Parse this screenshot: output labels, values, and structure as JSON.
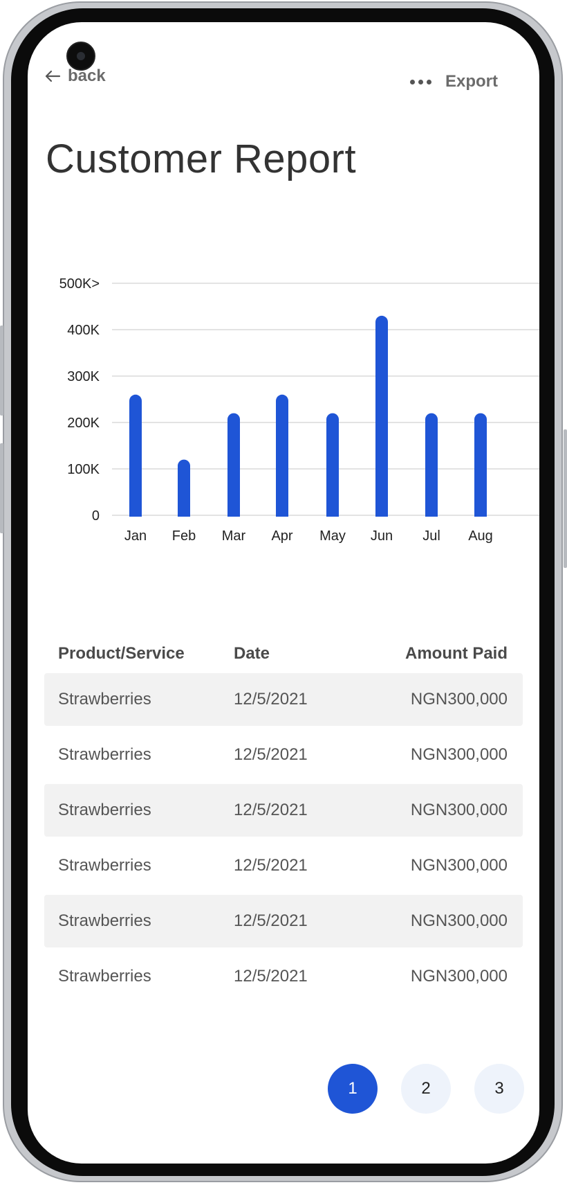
{
  "header": {
    "back_label": "back",
    "export_label": "Export"
  },
  "page_title": "Customer Report",
  "colors": {
    "accent": "#1f55d6",
    "grid": "#e3e3e3",
    "row_shade": "#f2f2f2"
  },
  "chart_data": {
    "type": "bar",
    "categories": [
      "Jan",
      "Feb",
      "Mar",
      "Apr",
      "May",
      "Jun",
      "Jul",
      "Aug"
    ],
    "values": [
      260000,
      120000,
      220000,
      260000,
      220000,
      430000,
      220000,
      220000
    ],
    "y_ticks": [
      "0",
      "100K",
      "200K",
      "300K",
      "400K",
      "500K>"
    ],
    "ylim": [
      0,
      500000
    ],
    "grid": true
  },
  "table": {
    "headers": [
      "Product/Service",
      "Date",
      "Amount Paid"
    ],
    "rows": [
      [
        "Strawberries",
        "12/5/2021",
        "NGN300,000"
      ],
      [
        "Strawberries",
        "12/5/2021",
        "NGN300,000"
      ],
      [
        "Strawberries",
        "12/5/2021",
        "NGN300,000"
      ],
      [
        "Strawberries",
        "12/5/2021",
        "NGN300,000"
      ],
      [
        "Strawberries",
        "12/5/2021",
        "NGN300,000"
      ],
      [
        "Strawberries",
        "12/5/2021",
        "NGN300,000"
      ]
    ]
  },
  "pagination": {
    "pages": [
      "1",
      "2",
      "3"
    ],
    "current": "1"
  }
}
